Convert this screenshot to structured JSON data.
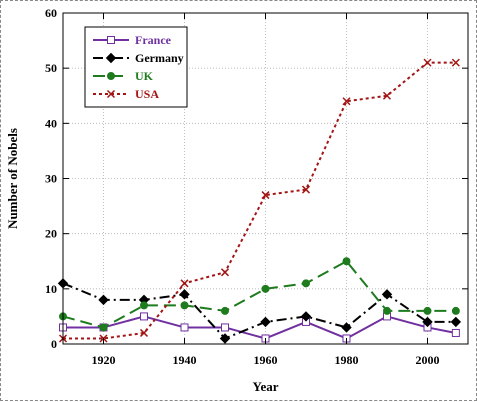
{
  "chart_data": {
    "type": "line",
    "title": "",
    "xlabel": "Year",
    "ylabel": "Number of Nobels",
    "xlim": [
      1910,
      2010
    ],
    "ylim": [
      0,
      60
    ],
    "x_ticks": [
      1920,
      1940,
      1960,
      1980,
      2000
    ],
    "y_ticks": [
      0,
      10,
      20,
      30,
      40,
      50,
      60
    ],
    "grid": true,
    "legend_position": "top-left",
    "x": [
      1910,
      1920,
      1930,
      1940,
      1950,
      1960,
      1970,
      1980,
      1990,
      2000,
      2007
    ],
    "series": [
      {
        "name": "France",
        "color": "#7030a0",
        "dash": "solid",
        "marker": "open-square",
        "values": [
          3,
          3,
          5,
          3,
          3,
          1,
          4,
          1,
          5,
          3,
          2
        ]
      },
      {
        "name": "Germany",
        "color": "#000000",
        "dash": "dash-dot",
        "marker": "diamond",
        "values": [
          11,
          8,
          8,
          9,
          1,
          4,
          5,
          3,
          9,
          4,
          4
        ]
      },
      {
        "name": "UK",
        "color": "#1e7b1e",
        "dash": "long-dash",
        "marker": "filled-circle",
        "values": [
          5,
          3,
          7,
          7,
          6,
          10,
          11,
          15,
          6,
          6,
          6
        ]
      },
      {
        "name": "USA",
        "color": "#a31515",
        "dash": "dot",
        "marker": "x",
        "values": [
          1,
          1,
          2,
          11,
          13,
          27,
          28,
          44,
          45,
          51,
          51
        ]
      }
    ]
  }
}
